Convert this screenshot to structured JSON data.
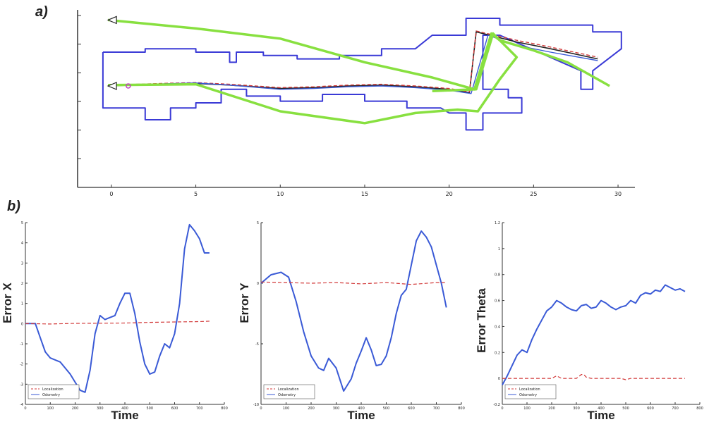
{
  "panels": {
    "a_label": "a)",
    "b_label": "b)"
  },
  "colors": {
    "map_wall": "#3a3ad6",
    "path_green": "#88e040",
    "localization": "#d23a3a",
    "odometry": "#3a5ad6",
    "true_path": "#222222",
    "start_marker": "#c040c0"
  },
  "chart_data": [
    {
      "type": "line",
      "panel": "a)",
      "title": "",
      "xlabel": "",
      "ylabel": "",
      "xlim": [
        -2,
        31
      ],
      "ylim": [
        -6,
        4.5
      ],
      "x_ticks": [
        "0",
        "5",
        "10",
        "15",
        "20",
        "25",
        "30"
      ],
      "y_ticks_count": 6,
      "series": [
        {
          "role": "map",
          "points": [
            [
              -0.5,
              2
            ],
            [
              2,
              2
            ],
            [
              2,
              2.2
            ],
            [
              5,
              2.2
            ],
            [
              5,
              2
            ],
            [
              7,
              2
            ],
            [
              7,
              1.4
            ],
            [
              7.4,
              1.4
            ],
            [
              7.4,
              2
            ],
            [
              9,
              2
            ],
            [
              9,
              1.8
            ],
            [
              11,
              1.8
            ],
            [
              11,
              1.6
            ],
            [
              13.5,
              1.6
            ],
            [
              13.5,
              1.8
            ],
            [
              16,
              1.8
            ],
            [
              16,
              2.2
            ],
            [
              18,
              2.2
            ],
            [
              19,
              3
            ],
            [
              21,
              3
            ],
            [
              21,
              4
            ],
            [
              23,
              4
            ],
            [
              23,
              3.6
            ],
            [
              28.5,
              3.6
            ],
            [
              28.5,
              3.2
            ],
            [
              30.2,
              3.2
            ],
            [
              30.2,
              2.2
            ],
            [
              28.5,
              0.9
            ],
            [
              28.5,
              -0.2
            ],
            [
              27.8,
              -0.2
            ],
            [
              27.8,
              0.9
            ],
            [
              23,
              3
            ],
            [
              22,
              3
            ],
            [
              22,
              -0.2
            ],
            [
              23.5,
              -0.2
            ],
            [
              23.5,
              -0.7
            ],
            [
              24.3,
              -0.7
            ],
            [
              24.3,
              -1.6
            ],
            [
              22,
              -1.6
            ],
            [
              22,
              -2.6
            ],
            [
              21,
              -2.6
            ],
            [
              21,
              -1.6
            ],
            [
              20,
              -1.6
            ],
            [
              19.5,
              -1.3
            ],
            [
              17.5,
              -1.3
            ],
            [
              17.5,
              -0.9
            ],
            [
              15,
              -0.9
            ],
            [
              15,
              -0.5
            ],
            [
              12.5,
              -0.5
            ],
            [
              12.5,
              -0.9
            ],
            [
              10,
              -0.9
            ],
            [
              10,
              -0.6
            ],
            [
              8,
              -0.6
            ],
            [
              8,
              -0.2
            ],
            [
              6.5,
              -0.2
            ],
            [
              6.5,
              -1
            ],
            [
              5,
              -1
            ],
            [
              5,
              -1.3
            ],
            [
              3.5,
              -1.3
            ],
            [
              3.5,
              -2
            ],
            [
              2,
              -2
            ],
            [
              2,
              -1.3
            ],
            [
              -0.5,
              -1.3
            ],
            [
              -0.5,
              2
            ]
          ]
        },
        {
          "role": "true_path",
          "points": [
            [
              -0.2,
              0
            ],
            [
              3,
              0.1
            ],
            [
              5,
              0.15
            ],
            [
              7,
              0.05
            ],
            [
              10,
              -0.15
            ],
            [
              12,
              -0.1
            ],
            [
              14,
              0
            ],
            [
              16,
              0.05
            ],
            [
              18,
              -0.05
            ],
            [
              20,
              -0.2
            ],
            [
              21.2,
              -0.4
            ],
            [
              21.6,
              3.2
            ],
            [
              24,
              2.6
            ],
            [
              26,
              2.2
            ],
            [
              28.8,
              1.6
            ]
          ]
        },
        {
          "role": "localization",
          "points": [
            [
              -0.2,
              0.05
            ],
            [
              3,
              0.15
            ],
            [
              5,
              0.2
            ],
            [
              7,
              0.1
            ],
            [
              10,
              -0.1
            ],
            [
              12,
              -0.05
            ],
            [
              14,
              0.05
            ],
            [
              16,
              0.1
            ],
            [
              18,
              0
            ],
            [
              20,
              -0.15
            ],
            [
              21.2,
              -0.35
            ],
            [
              21.6,
              3.25
            ],
            [
              24,
              2.7
            ],
            [
              26,
              2.3
            ],
            [
              28.8,
              1.7
            ]
          ]
        },
        {
          "role": "odometry",
          "points": [
            [
              -0.2,
              0
            ],
            [
              3,
              0.12
            ],
            [
              5,
              0.18
            ],
            [
              7,
              0.05
            ],
            [
              10,
              -0.2
            ],
            [
              12,
              -0.15
            ],
            [
              14,
              -0.05
            ],
            [
              16,
              0
            ],
            [
              18,
              -0.1
            ],
            [
              20,
              -0.25
            ],
            [
              21.3,
              -0.45
            ],
            [
              22.3,
              3
            ],
            [
              24,
              2.4
            ],
            [
              26,
              2.0
            ],
            [
              28.8,
              1.5
            ]
          ]
        },
        {
          "role": "green_path",
          "points": [
            [
              -0.2,
              3.9
            ],
            [
              5,
              3.4
            ],
            [
              10,
              2.8
            ],
            [
              15,
              1.4
            ],
            [
              19,
              0.5
            ],
            [
              21.5,
              -0.2
            ],
            [
              22.5,
              3.1
            ],
            [
              23,
              2.7
            ],
            [
              25,
              2.1
            ],
            [
              27,
              1.4
            ],
            [
              29.5,
              0
            ]
          ]
        },
        {
          "role": "green_path_loop",
          "points": [
            [
              -0.2,
              0.05
            ],
            [
              5,
              0.1
            ],
            [
              10,
              -1.5
            ],
            [
              15,
              -2.2
            ],
            [
              18,
              -1.6
            ],
            [
              20.5,
              -1.4
            ],
            [
              21.7,
              -1.5
            ],
            [
              23,
              0.4
            ],
            [
              24,
              1.7
            ],
            [
              22.6,
              3.1
            ],
            [
              21.6,
              -0.2
            ],
            [
              19,
              -0.3
            ]
          ]
        }
      ]
    },
    {
      "type": "line",
      "panel": "b1",
      "ylabel": "Error X",
      "xlabel": "Time",
      "xlim": [
        0,
        800
      ],
      "ylim": [
        -4,
        5
      ],
      "x_ticks": [
        "0",
        "100",
        "200",
        "300",
        "400",
        "500",
        "600",
        "700",
        "800"
      ],
      "y_ticks": [
        "-4",
        "-3",
        "-2",
        "-1",
        "0",
        "1",
        "2",
        "3",
        "4",
        "5"
      ],
      "legend": [
        "Localization",
        "Odometry"
      ],
      "series": [
        {
          "name": "Localization",
          "x": [
            0,
            100,
            200,
            300,
            400,
            500,
            600,
            700,
            740
          ],
          "y": [
            0,
            -0.02,
            0.01,
            0.02,
            0.03,
            0.06,
            0.08,
            0.1,
            0.12
          ]
        },
        {
          "name": "Odometry",
          "x": [
            0,
            40,
            60,
            80,
            100,
            140,
            180,
            200,
            220,
            240,
            260,
            280,
            300,
            320,
            340,
            360,
            380,
            400,
            420,
            440,
            460,
            480,
            500,
            520,
            540,
            560,
            580,
            600,
            620,
            640,
            660,
            680,
            700,
            720,
            740
          ],
          "y": [
            0,
            0,
            -0.7,
            -1.4,
            -1.7,
            -1.9,
            -2.5,
            -2.9,
            -3.3,
            -3.4,
            -2.3,
            -0.5,
            0.4,
            0.2,
            0.3,
            0.4,
            1,
            1.5,
            1.5,
            0.5,
            -0.9,
            -2,
            -2.5,
            -2.4,
            -1.6,
            -1,
            -1.2,
            -0.5,
            1,
            3.7,
            4.9,
            4.6,
            4.2,
            3.5,
            3.5
          ]
        }
      ]
    },
    {
      "type": "line",
      "panel": "b2",
      "ylabel": "Error Y",
      "xlabel": "Time",
      "xlim": [
        0,
        800
      ],
      "ylim": [
        -10,
        5
      ],
      "x_ticks": [
        "0",
        "100",
        "200",
        "300",
        "400",
        "500",
        "600",
        "700",
        "800"
      ],
      "y_ticks": [
        "-10",
        "-5",
        "0",
        "5"
      ],
      "legend": [
        "Localization",
        "Odometry"
      ],
      "series": [
        {
          "name": "Localization",
          "x": [
            0,
            100,
            200,
            300,
            400,
            500,
            600,
            700,
            740
          ],
          "y": [
            0.1,
            0.05,
            0,
            0.05,
            -0.05,
            0.05,
            -0.1,
            0.05,
            0.05
          ]
        },
        {
          "name": "Odometry",
          "x": [
            0,
            40,
            80,
            110,
            140,
            170,
            200,
            230,
            250,
            270,
            300,
            330,
            360,
            380,
            400,
            420,
            440,
            460,
            480,
            500,
            520,
            540,
            560,
            580,
            600,
            620,
            640,
            660,
            680,
            700,
            720,
            740
          ],
          "y": [
            0,
            0.7,
            0.9,
            0.5,
            -1.5,
            -4,
            -6,
            -7,
            -7.2,
            -6.2,
            -7,
            -8.9,
            -7.9,
            -6.6,
            -5.6,
            -4.5,
            -5.5,
            -6.8,
            -6.7,
            -6,
            -4.5,
            -2.5,
            -1,
            -0.5,
            1.5,
            3.5,
            4.3,
            3.8,
            3,
            1.5,
            0,
            -2
          ]
        }
      ]
    },
    {
      "type": "line",
      "panel": "b3",
      "ylabel": "Error Theta",
      "xlabel": "Time",
      "xlim": [
        0,
        800
      ],
      "ylim": [
        -0.2,
        1.2
      ],
      "x_ticks": [
        "0",
        "100",
        "200",
        "300",
        "400",
        "500",
        "600",
        "700",
        "800"
      ],
      "y_ticks": [
        "-0.2",
        "0",
        "0.2",
        "0.4",
        "0.6",
        "0.8",
        "1",
        "1.2"
      ],
      "legend": [
        "Localization",
        "Odometry"
      ],
      "series": [
        {
          "name": "Localization",
          "x": [
            0,
            100,
            200,
            220,
            240,
            260,
            300,
            320,
            330,
            340,
            360,
            400,
            480,
            500,
            520,
            600,
            700,
            740
          ],
          "y": [
            0,
            0,
            0,
            0.02,
            0,
            0,
            0,
            0.03,
            0.03,
            0.01,
            0,
            0,
            0,
            -0.01,
            0,
            0,
            0,
            0
          ]
        },
        {
          "name": "Odometry",
          "x": [
            0,
            20,
            40,
            60,
            80,
            100,
            120,
            140,
            160,
            180,
            200,
            220,
            240,
            260,
            280,
            300,
            320,
            340,
            360,
            380,
            400,
            420,
            440,
            460,
            480,
            500,
            520,
            540,
            560,
            580,
            600,
            620,
            640,
            660,
            680,
            700,
            720,
            740
          ],
          "y": [
            -0.05,
            0.02,
            0.1,
            0.18,
            0.22,
            0.2,
            0.3,
            0.38,
            0.45,
            0.52,
            0.55,
            0.6,
            0.58,
            0.55,
            0.53,
            0.52,
            0.56,
            0.57,
            0.54,
            0.55,
            0.6,
            0.58,
            0.55,
            0.53,
            0.55,
            0.56,
            0.6,
            0.58,
            0.64,
            0.66,
            0.65,
            0.68,
            0.67,
            0.72,
            0.7,
            0.68,
            0.69,
            0.67
          ]
        }
      ]
    }
  ]
}
